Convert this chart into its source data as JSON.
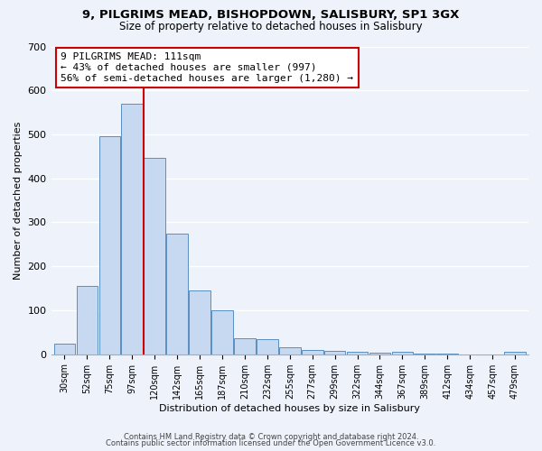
{
  "title1": "9, PILGRIMS MEAD, BISHOPDOWN, SALISBURY, SP1 3GX",
  "title2": "Size of property relative to detached houses in Salisbury",
  "xlabel": "Distribution of detached houses by size in Salisbury",
  "ylabel": "Number of detached properties",
  "categories": [
    "30sqm",
    "52sqm",
    "75sqm",
    "97sqm",
    "120sqm",
    "142sqm",
    "165sqm",
    "187sqm",
    "210sqm",
    "232sqm",
    "255sqm",
    "277sqm",
    "299sqm",
    "322sqm",
    "344sqm",
    "367sqm",
    "389sqm",
    "412sqm",
    "434sqm",
    "457sqm",
    "479sqm"
  ],
  "values": [
    25,
    155,
    495,
    570,
    447,
    275,
    145,
    100,
    37,
    35,
    15,
    10,
    7,
    5,
    3,
    5,
    2,
    1,
    0,
    0,
    5
  ],
  "bar_color": "#c6d9f0",
  "bar_edge_color": "#5a8fc0",
  "highlight_line_color": "#cc0000",
  "annotation_title": "9 PILGRIMS MEAD: 111sqm",
  "annotation_line1": "← 43% of detached houses are smaller (997)",
  "annotation_line2": "56% of semi-detached houses are larger (1,280) →",
  "annotation_box_color": "#ffffff",
  "annotation_box_edge_color": "#cc0000",
  "ylim": [
    0,
    700
  ],
  "yticks": [
    0,
    100,
    200,
    300,
    400,
    500,
    600,
    700
  ],
  "footer1": "Contains HM Land Registry data © Crown copyright and database right 2024.",
  "footer2": "Contains public sector information licensed under the Open Government Licence v3.0.",
  "background_color": "#edf2fb"
}
